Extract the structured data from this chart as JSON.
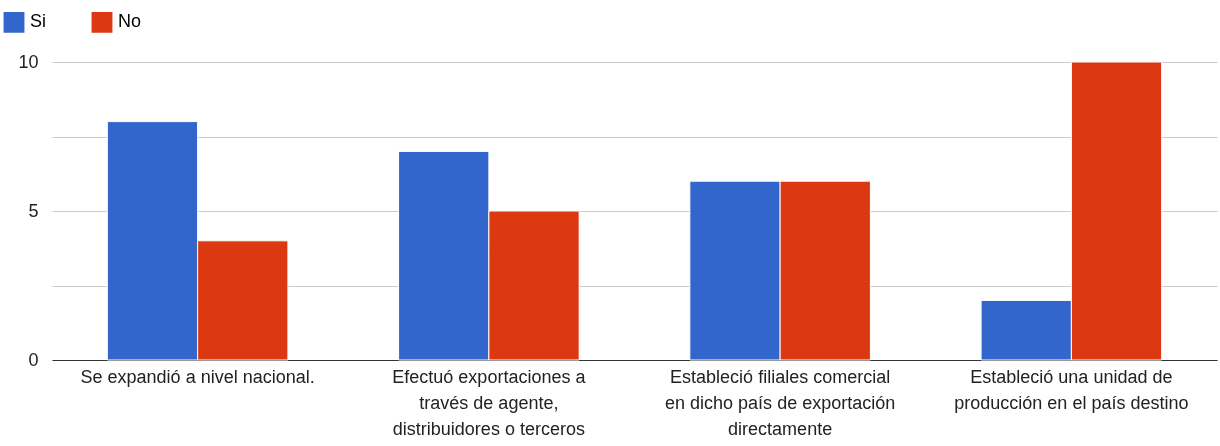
{
  "chart_data": {
    "type": "bar",
    "categories": [
      "Se expandió a nivel nacional.",
      "Efectuó exportaciones a través de agente, distribuidores o terceros",
      "Estableció filiales comercial en dicho país de exportación directamente",
      "Estableció una unidad de producción en el país destino"
    ],
    "series": [
      {
        "name": "Si",
        "color": "#3366cc",
        "values": [
          8,
          7,
          6,
          2
        ]
      },
      {
        "name": "No",
        "color": "#dc3912",
        "values": [
          4,
          5,
          6,
          10
        ]
      }
    ],
    "ylim": [
      0,
      10
    ],
    "yticks": [
      0,
      {
        "value": 2.5,
        "label": null
      },
      5,
      {
        "value": 7.5,
        "label": null
      },
      10
    ],
    "grid": "y",
    "legend": "top left"
  }
}
